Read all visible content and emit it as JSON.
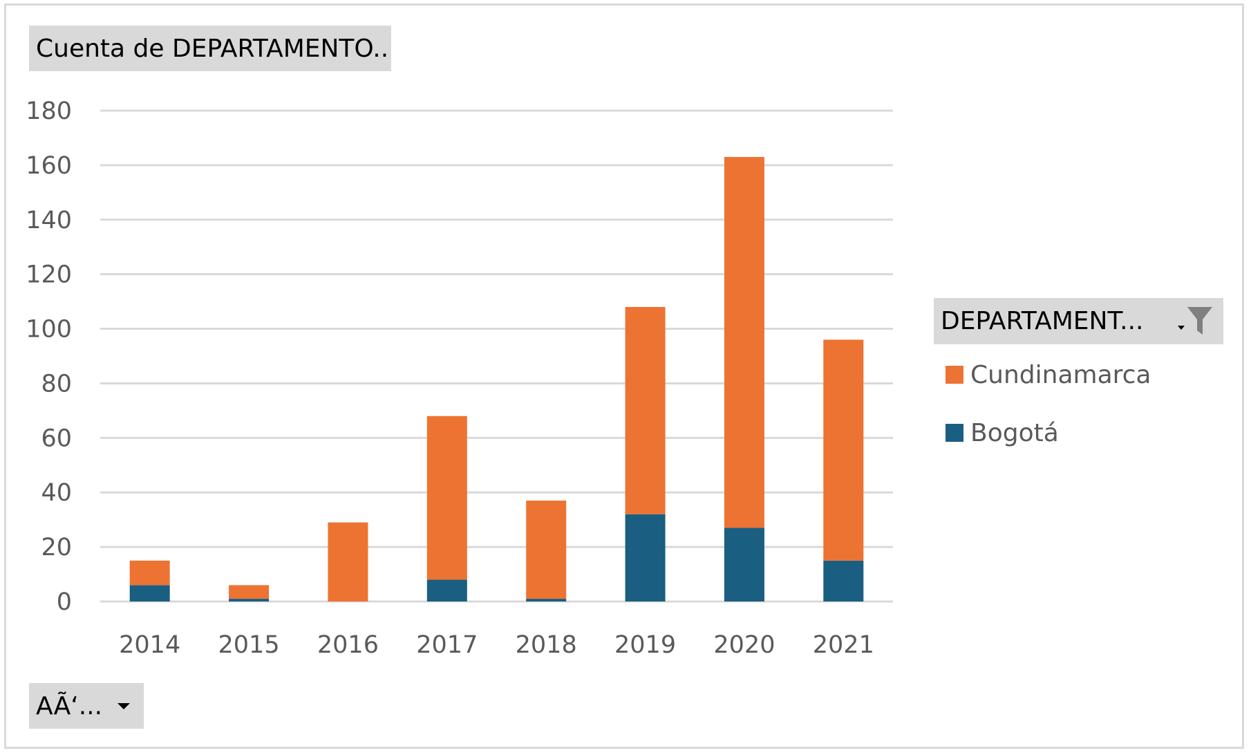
{
  "pivot": {
    "value_field_label": "Cuenta de DEPARTAMENTO...",
    "legend_field_label": "DEPARTAMENT...",
    "axis_field_label": "AÃ‘..."
  },
  "colors": {
    "Cundinamarca": "#ed7332",
    "Bogotá": "#1a5e82",
    "gridline": "#d9d9d9",
    "field_button_bg": "#d9d9d9"
  },
  "icons": {
    "legend_filter": "filter-funnel-icon",
    "axis_dropdown": "chevron-down-icon"
  },
  "chart_data": {
    "type": "bar",
    "stacked": true,
    "categories": [
      "2014",
      "2015",
      "2016",
      "2017",
      "2018",
      "2019",
      "2020",
      "2021"
    ],
    "series": [
      {
        "name": "Bogotá",
        "values": [
          6,
          1,
          0,
          8,
          1,
          32,
          27,
          15
        ]
      },
      {
        "name": "Cundinamarca",
        "values": [
          9,
          5,
          29,
          60,
          36,
          76,
          136,
          81
        ]
      }
    ],
    "ylim": [
      0,
      180
    ],
    "yticks": [
      0,
      20,
      40,
      60,
      80,
      100,
      120,
      140,
      160,
      180
    ],
    "grid": true,
    "legend_position": "right",
    "legend_order": [
      "Cundinamarca",
      "Bogotá"
    ]
  }
}
